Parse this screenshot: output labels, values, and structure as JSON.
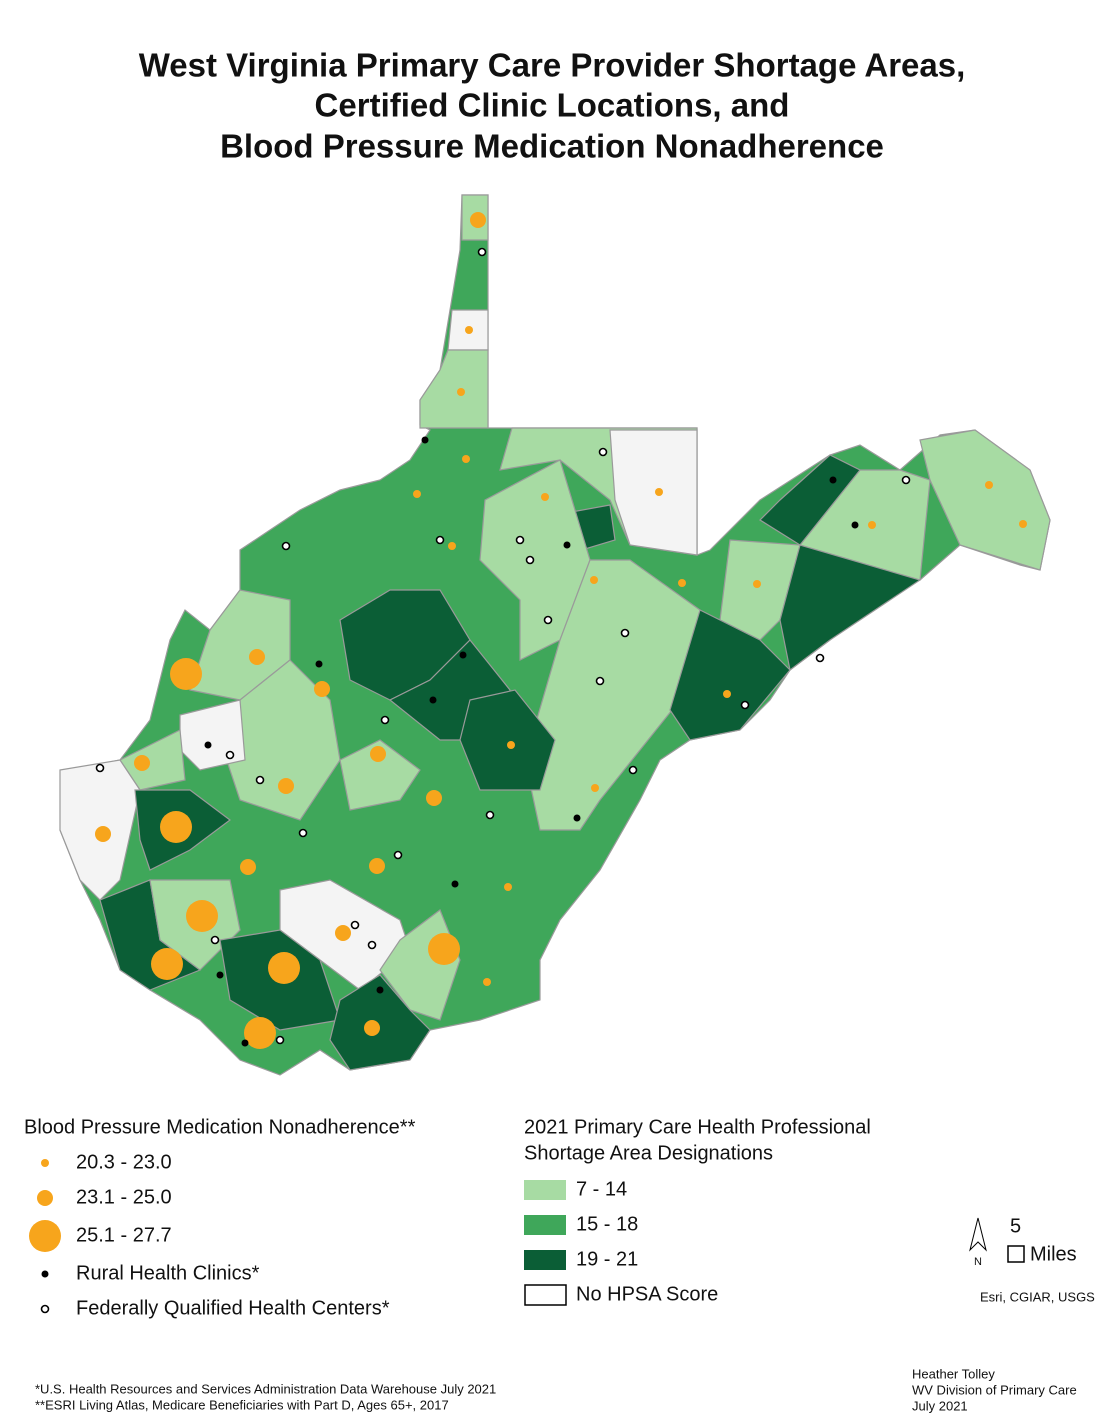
{
  "title": [
    "West Virginia Primary Care Provider Shortage Areas,",
    "Certified Clinic Locations, and",
    "Blood Pressure Medication Nonadherence"
  ],
  "legend_nonadherence": {
    "title": "Blood Pressure Medication Nonadherence**",
    "items": [
      "20.3 - 23.0",
      "23.1 - 25.0",
      "25.1 - 27.7"
    ],
    "rural_health_clinics": "Rural Health Clinics*",
    "fqhc": "Federally Qualified Health Centers*"
  },
  "legend_hpsa": {
    "title": [
      "2021 Primary Care Health Professional",
      "Shortage Area Designations"
    ],
    "items": [
      "7 - 14",
      "15 - 18",
      "19 - 21",
      "No HPSA Score"
    ]
  },
  "scale": {
    "north": "N",
    "distance": "5",
    "unit": "Miles"
  },
  "attribution": "Esri, CGIAR, USGS",
  "footnotes": [
    "*U.S. Health Resources and Services Administration Data Warehouse July 2021",
    "**ESRI Living Atlas, Medicare Beneficiaries with Part D, Ages 65+, 2017"
  ],
  "credits": [
    "Heather Tolley",
    "WV Division of Primary Care",
    "July 2021"
  ]
}
